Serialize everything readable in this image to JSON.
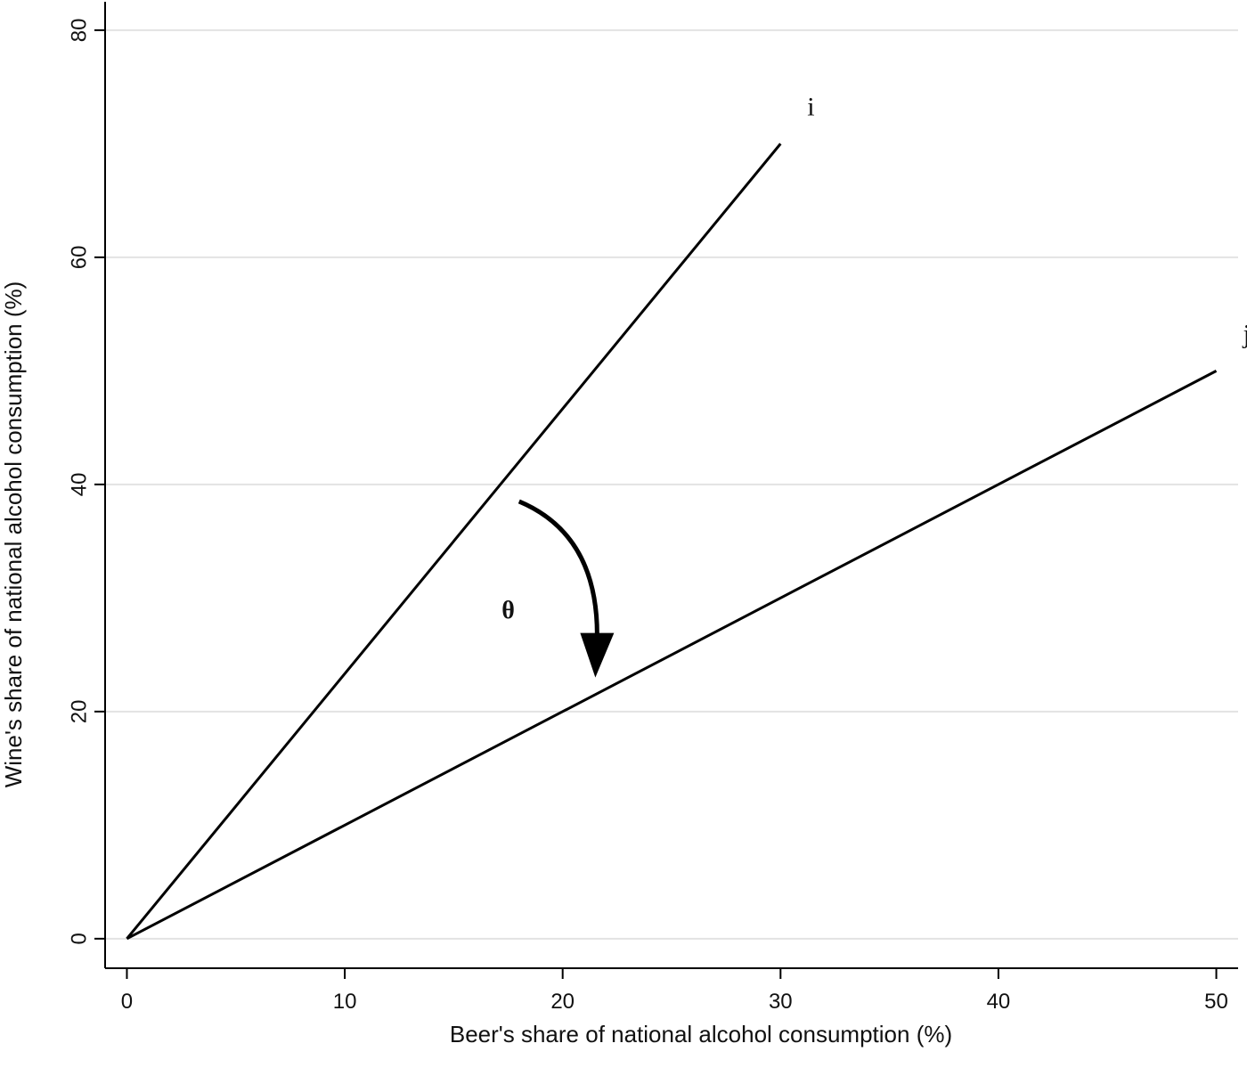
{
  "chart_data": {
    "type": "line",
    "title": "",
    "xlabel": "Beer's share of national alcohol consumption (%)",
    "ylabel": "Wine's share of national alcohol consumption (%)",
    "xlim": [
      -1,
      51
    ],
    "ylim": [
      -2.6,
      82.5
    ],
    "xticks": [
      0,
      10,
      20,
      30,
      40,
      50
    ],
    "yticks": [
      0,
      20,
      40,
      60,
      80
    ],
    "grid": "horizontal",
    "series": [
      {
        "name": "i",
        "x": [
          0,
          30
        ],
        "y": [
          0,
          70
        ]
      },
      {
        "name": "j",
        "x": [
          0,
          50
        ],
        "y": [
          0,
          50
        ]
      }
    ],
    "annotations": [
      {
        "type": "curved-arrow",
        "label": "θ",
        "from": [
          18,
          38.5
        ],
        "to": [
          21.5,
          23
        ],
        "label_at": [
          17.5,
          29
        ]
      }
    ]
  }
}
